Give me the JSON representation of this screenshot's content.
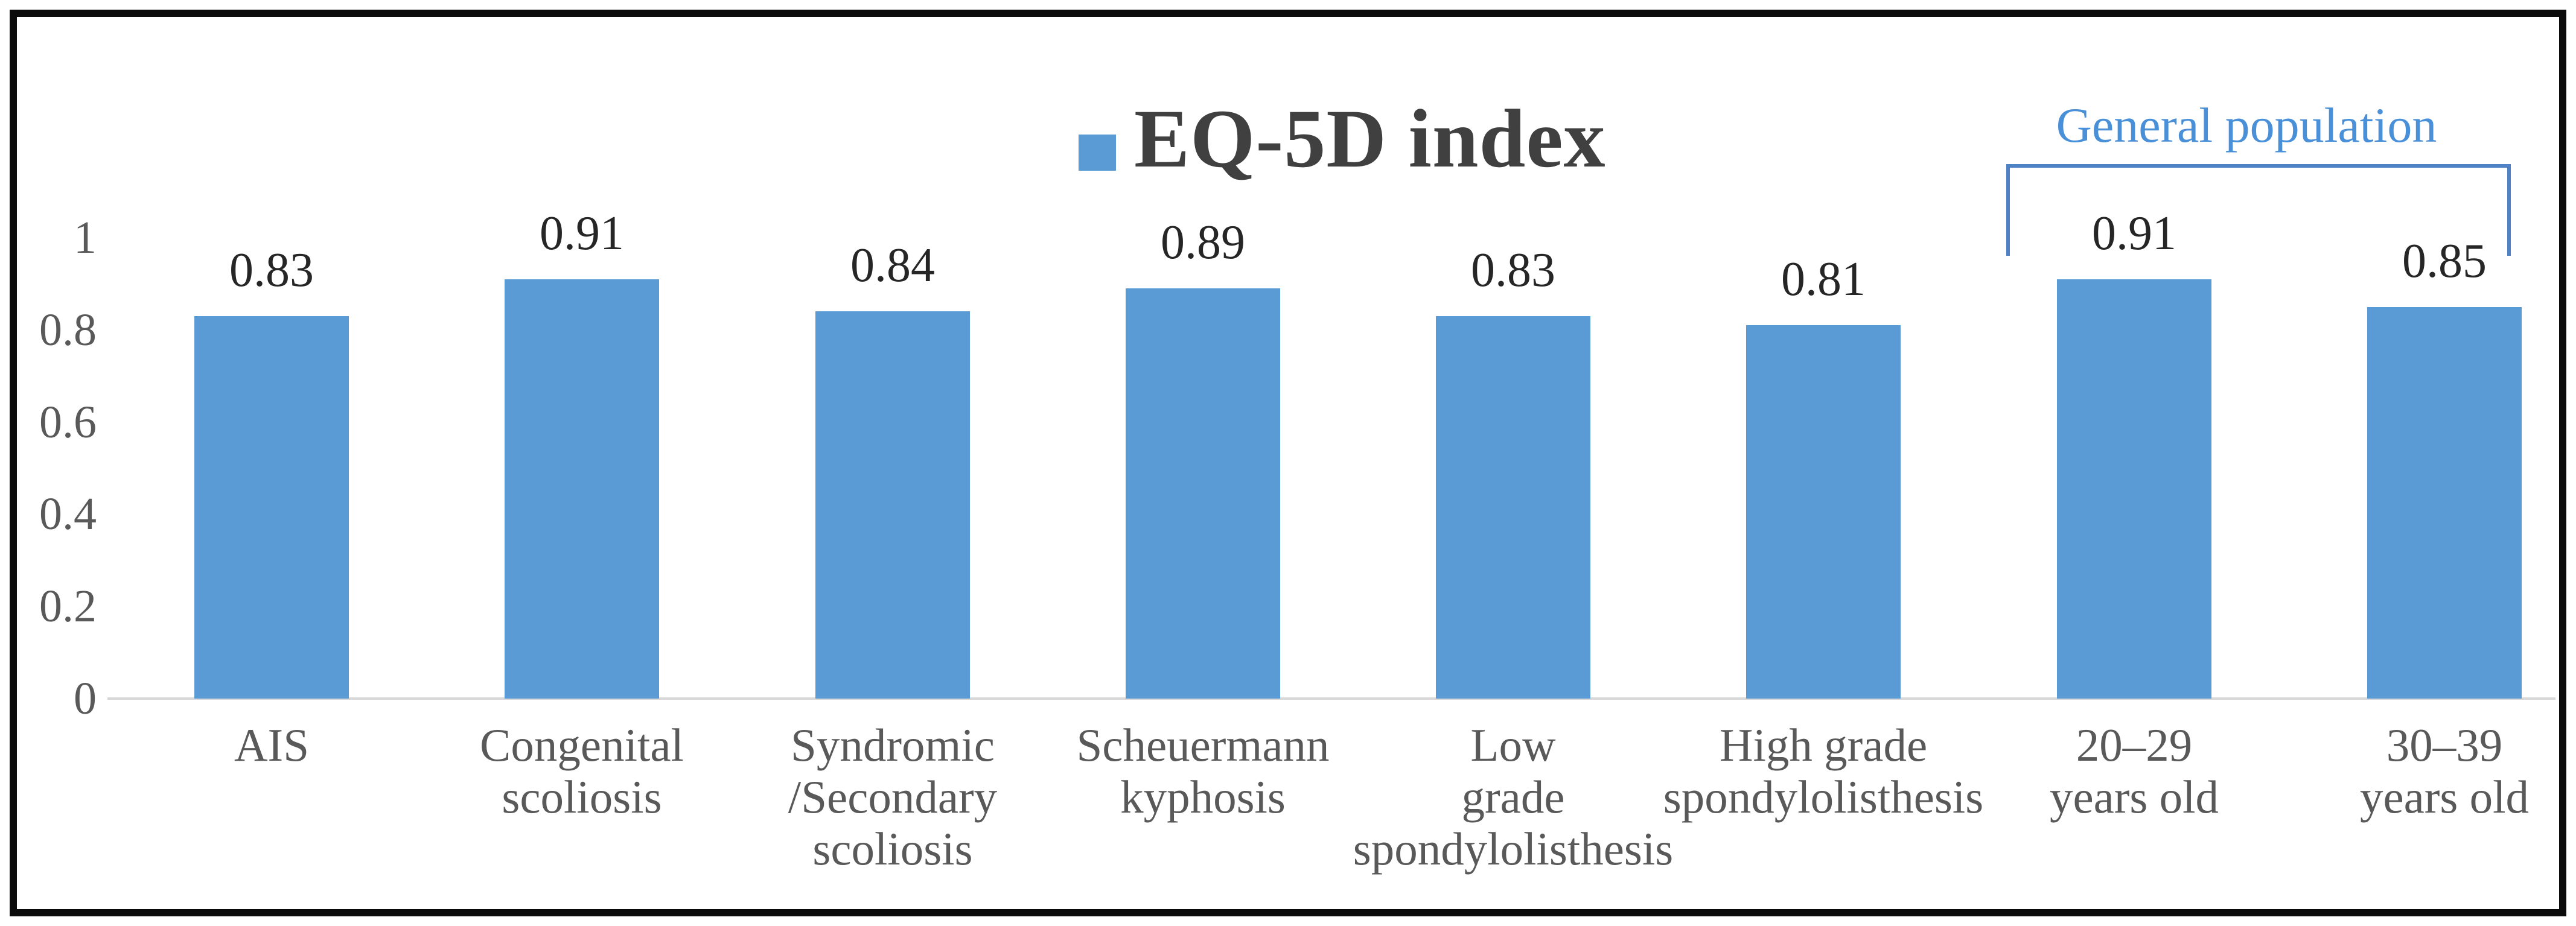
{
  "figure": {
    "border_color": "#0b0b0b",
    "background": "#ffffff"
  },
  "legend": {
    "label": "EQ-5D index",
    "swatch_color": "#5B9BD5",
    "text_color": "#404040"
  },
  "annotation": {
    "label": "General population",
    "text_color": "#4a90d9",
    "bracket_color": "#4e82c4",
    "covers_categories": [
      "20–29\nyears old",
      "30–39\nyears old"
    ]
  },
  "chart_data": {
    "type": "bar",
    "title": "EQ-5D index",
    "categories": [
      "AIS",
      "Congenital\nscoliosis",
      "Syndromic\n/Secondary\nscoliosis",
      "Scheuermann\nkyphosis",
      "Low\ngrade\nspondylolisthesis",
      "High grade\nspondylolisthesis",
      "20–29\nyears old",
      "30–39\nyears old"
    ],
    "values": [
      0.83,
      0.91,
      0.84,
      0.89,
      0.83,
      0.81,
      0.91,
      0.85
    ],
    "data_labels": [
      "0.83",
      "0.91",
      "0.84",
      "0.89",
      "0.83",
      "0.81",
      "0.91",
      "0.85"
    ],
    "y_ticks": [
      {
        "label": "1",
        "value": 1.0
      },
      {
        "label": "0.8",
        "value": 0.8
      },
      {
        "label": "0.6",
        "value": 0.6
      },
      {
        "label": "0.4",
        "value": 0.4
      },
      {
        "label": "0.2",
        "value": 0.2
      },
      {
        "label": "0",
        "value": 0.0
      }
    ],
    "ylim": [
      0,
      1
    ],
    "xlabel": "",
    "ylabel": "",
    "grid": false,
    "legend_position": "top-center",
    "bar_color": "#5B9BD5",
    "value_label_color": "#262626",
    "axis_label_color": "#595959"
  }
}
